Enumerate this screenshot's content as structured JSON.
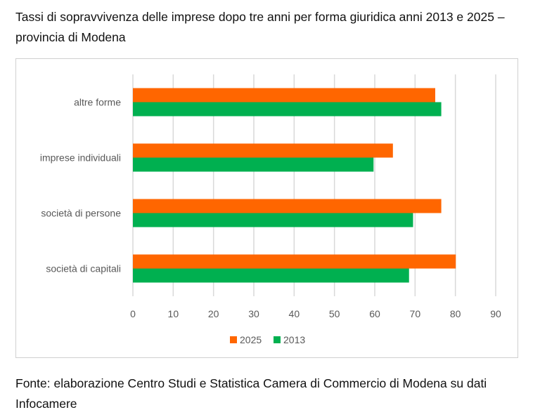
{
  "title": "Tassi di sopravvivenza delle imprese dopo tre anni per forma giuridica anni 2013 e 2025 – provincia di Modena",
  "source": "Fonte: elaborazione Centro Studi e Statistica Camera di Commercio di Modena su dati Infocamere",
  "chart_data": {
    "type": "bar",
    "orientation": "horizontal",
    "categories": [
      "altre forme",
      "imprese individuali",
      "società di persone",
      "società di capitali"
    ],
    "series": [
      {
        "name": "2025",
        "color": "#FF6600",
        "values": [
          75.0,
          64.5,
          76.5,
          80.1
        ]
      },
      {
        "name": "2013",
        "color": "#00B050",
        "values": [
          76.5,
          59.7,
          69.5,
          68.5
        ]
      }
    ],
    "xlim": [
      0,
      90
    ],
    "xticks": [
      "0",
      "10",
      "20",
      "30",
      "40",
      "50",
      "60",
      "70",
      "80",
      "90"
    ],
    "grid": true,
    "legend": "bottom"
  }
}
